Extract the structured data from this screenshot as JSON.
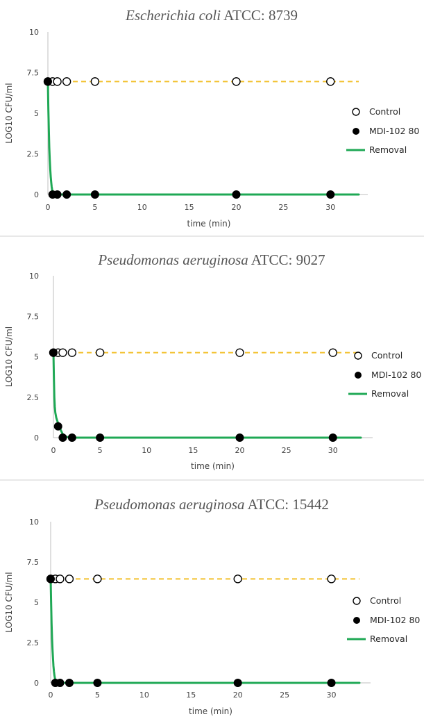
{
  "colors": {
    "control_line": "#F2C12E",
    "removal_line": "#1FA855",
    "marker": "#000000",
    "axis": "#BFBFBF",
    "title": "#555555"
  },
  "chart_data": [
    {
      "type": "scatter",
      "title_italic": "Escherichia coli",
      "title_rest": " ATCC: 8739",
      "xlabel": "time (min)",
      "ylabel": "LOG10 CFU/ml",
      "xlim": [
        0,
        33
      ],
      "ylim": [
        0,
        10
      ],
      "xticks": [
        0,
        5,
        10,
        15,
        20,
        25,
        30
      ],
      "yticks": [
        0,
        2.5,
        5,
        7.5,
        10
      ],
      "ytick_labels": [
        "0",
        "2.5",
        "5",
        "7.5",
        "10"
      ],
      "grid": false,
      "legend_position": "right",
      "series": [
        {
          "name": "Control",
          "marker": "open-circle",
          "line": "dashed",
          "x": [
            0,
            0.5,
            1,
            2,
            5,
            20,
            30
          ],
          "y": [
            6.95,
            6.95,
            6.95,
            6.95,
            6.95,
            6.95,
            6.95
          ]
        },
        {
          "name": "MDI-102 80",
          "marker": "filled-circle",
          "x": [
            0,
            0.5,
            1,
            2,
            5,
            20,
            30
          ],
          "y": [
            6.95,
            0,
            0,
            0,
            0,
            0,
            0
          ]
        },
        {
          "name": "Removal",
          "marker": "none",
          "line": "solid",
          "x": [
            0,
            0.05,
            0.1,
            0.15,
            0.2,
            0.25,
            0.3,
            0.35,
            0.4,
            0.45,
            0.5,
            0.6,
            0.8,
            1.2,
            2,
            5,
            10,
            20,
            30,
            33
          ],
          "y": [
            6.95,
            5.2,
            3.9,
            2.9,
            2.15,
            1.55,
            1.1,
            0.75,
            0.5,
            0.3,
            0.18,
            0.07,
            0.02,
            0,
            0,
            0,
            0,
            0,
            0,
            0
          ]
        }
      ]
    },
    {
      "type": "scatter",
      "title_italic": "Pseudomonas aeruginosa",
      "title_rest": " ATCC: 9027",
      "xlabel": "time (min)",
      "ylabel": "LOG10 CFU/ml",
      "xlim": [
        0,
        33
      ],
      "ylim": [
        0,
        10
      ],
      "xticks": [
        0,
        5,
        10,
        15,
        20,
        25,
        30
      ],
      "yticks": [
        0,
        2.5,
        5,
        7.5,
        10
      ],
      "ytick_labels": [
        "0",
        "2.5",
        "5",
        "7.5",
        "10"
      ],
      "grid": false,
      "legend_position": "right",
      "series": [
        {
          "name": "Control",
          "marker": "open-circle",
          "line": "dashed",
          "x": [
            0,
            0.5,
            1,
            2,
            5,
            20,
            30
          ],
          "y": [
            5.25,
            5.25,
            5.25,
            5.25,
            5.25,
            5.25,
            5.25
          ]
        },
        {
          "name": "MDI-102 80",
          "marker": "filled-circle",
          "x": [
            0,
            0.5,
            1,
            2,
            5,
            20,
            30
          ],
          "y": [
            5.25,
            0.7,
            0,
            0,
            0,
            0,
            0
          ]
        },
        {
          "name": "Removal",
          "marker": "none",
          "line": "solid",
          "x": [
            0,
            0.05,
            0.1,
            0.15,
            0.2,
            0.3,
            0.4,
            0.5,
            0.6,
            0.8,
            1,
            1.2,
            1.5,
            2,
            5,
            10,
            20,
            30,
            33
          ],
          "y": [
            5.25,
            3.6,
            2.5,
            1.9,
            1.55,
            1.25,
            1.05,
            0.9,
            0.75,
            0.45,
            0.22,
            0.1,
            0.03,
            0,
            0,
            0,
            0,
            0,
            0
          ]
        }
      ]
    },
    {
      "type": "scatter",
      "title_italic": "Pseudomonas aeruginosa",
      "title_rest": " ATCC: 15442",
      "xlabel": "time (min)",
      "ylabel": "LOG10 CFU/ml",
      "xlim": [
        0,
        33
      ],
      "ylim": [
        0,
        10
      ],
      "xticks": [
        0,
        5,
        10,
        15,
        20,
        25,
        30
      ],
      "yticks": [
        0,
        2.5,
        5,
        7.5,
        10
      ],
      "ytick_labels": [
        "0",
        "2.5",
        "5",
        "7.5",
        "10"
      ],
      "grid": false,
      "legend_position": "right",
      "series": [
        {
          "name": "Control",
          "marker": "open-circle",
          "line": "dashed",
          "x": [
            0,
            0.5,
            1,
            2,
            5,
            20,
            30
          ],
          "y": [
            6.45,
            6.45,
            6.45,
            6.45,
            6.45,
            6.45,
            6.45
          ]
        },
        {
          "name": "MDI-102 80",
          "marker": "filled-circle",
          "x": [
            0,
            0.5,
            1,
            2,
            5,
            20,
            30
          ],
          "y": [
            6.45,
            0,
            0,
            0,
            0,
            0,
            0
          ]
        },
        {
          "name": "Removal",
          "marker": "none",
          "line": "solid",
          "x": [
            0,
            0.05,
            0.1,
            0.15,
            0.2,
            0.25,
            0.3,
            0.35,
            0.4,
            0.45,
            0.5,
            0.6,
            0.8,
            1.2,
            2,
            5,
            10,
            20,
            30,
            33
          ],
          "y": [
            6.45,
            4.9,
            3.7,
            2.75,
            2.05,
            1.5,
            1.05,
            0.72,
            0.48,
            0.3,
            0.18,
            0.07,
            0.02,
            0,
            0,
            0,
            0,
            0,
            0,
            0
          ]
        }
      ]
    }
  ]
}
